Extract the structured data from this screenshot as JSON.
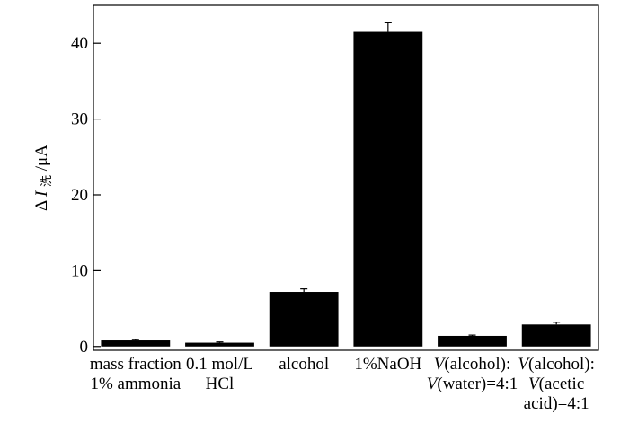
{
  "chart_data": {
    "type": "bar",
    "categories": [
      [
        "mass fraction",
        "1% ammonia"
      ],
      [
        "0.1 mol/L",
        "HCl"
      ],
      [
        "alcohol"
      ],
      [
        "1%NaOH"
      ],
      [
        "V(alcohol):",
        "V(water)=4:1"
      ],
      [
        "V(alcohol):",
        "V(acetic",
        "acid)=4:1"
      ]
    ],
    "values": [
      0.8,
      0.5,
      7.2,
      41.5,
      1.4,
      2.9
    ],
    "errors": [
      0.1,
      0.1,
      0.4,
      1.2,
      0.1,
      0.3
    ],
    "ylabel": {
      "prefix": "Δ",
      "symbol": "I",
      "subscript": "洗",
      "unit": "/μA"
    },
    "yticks": [
      0,
      10,
      20,
      30,
      40
    ],
    "ylim": [
      -0.5,
      45
    ],
    "bar_color": "#000000",
    "grid": false
  }
}
